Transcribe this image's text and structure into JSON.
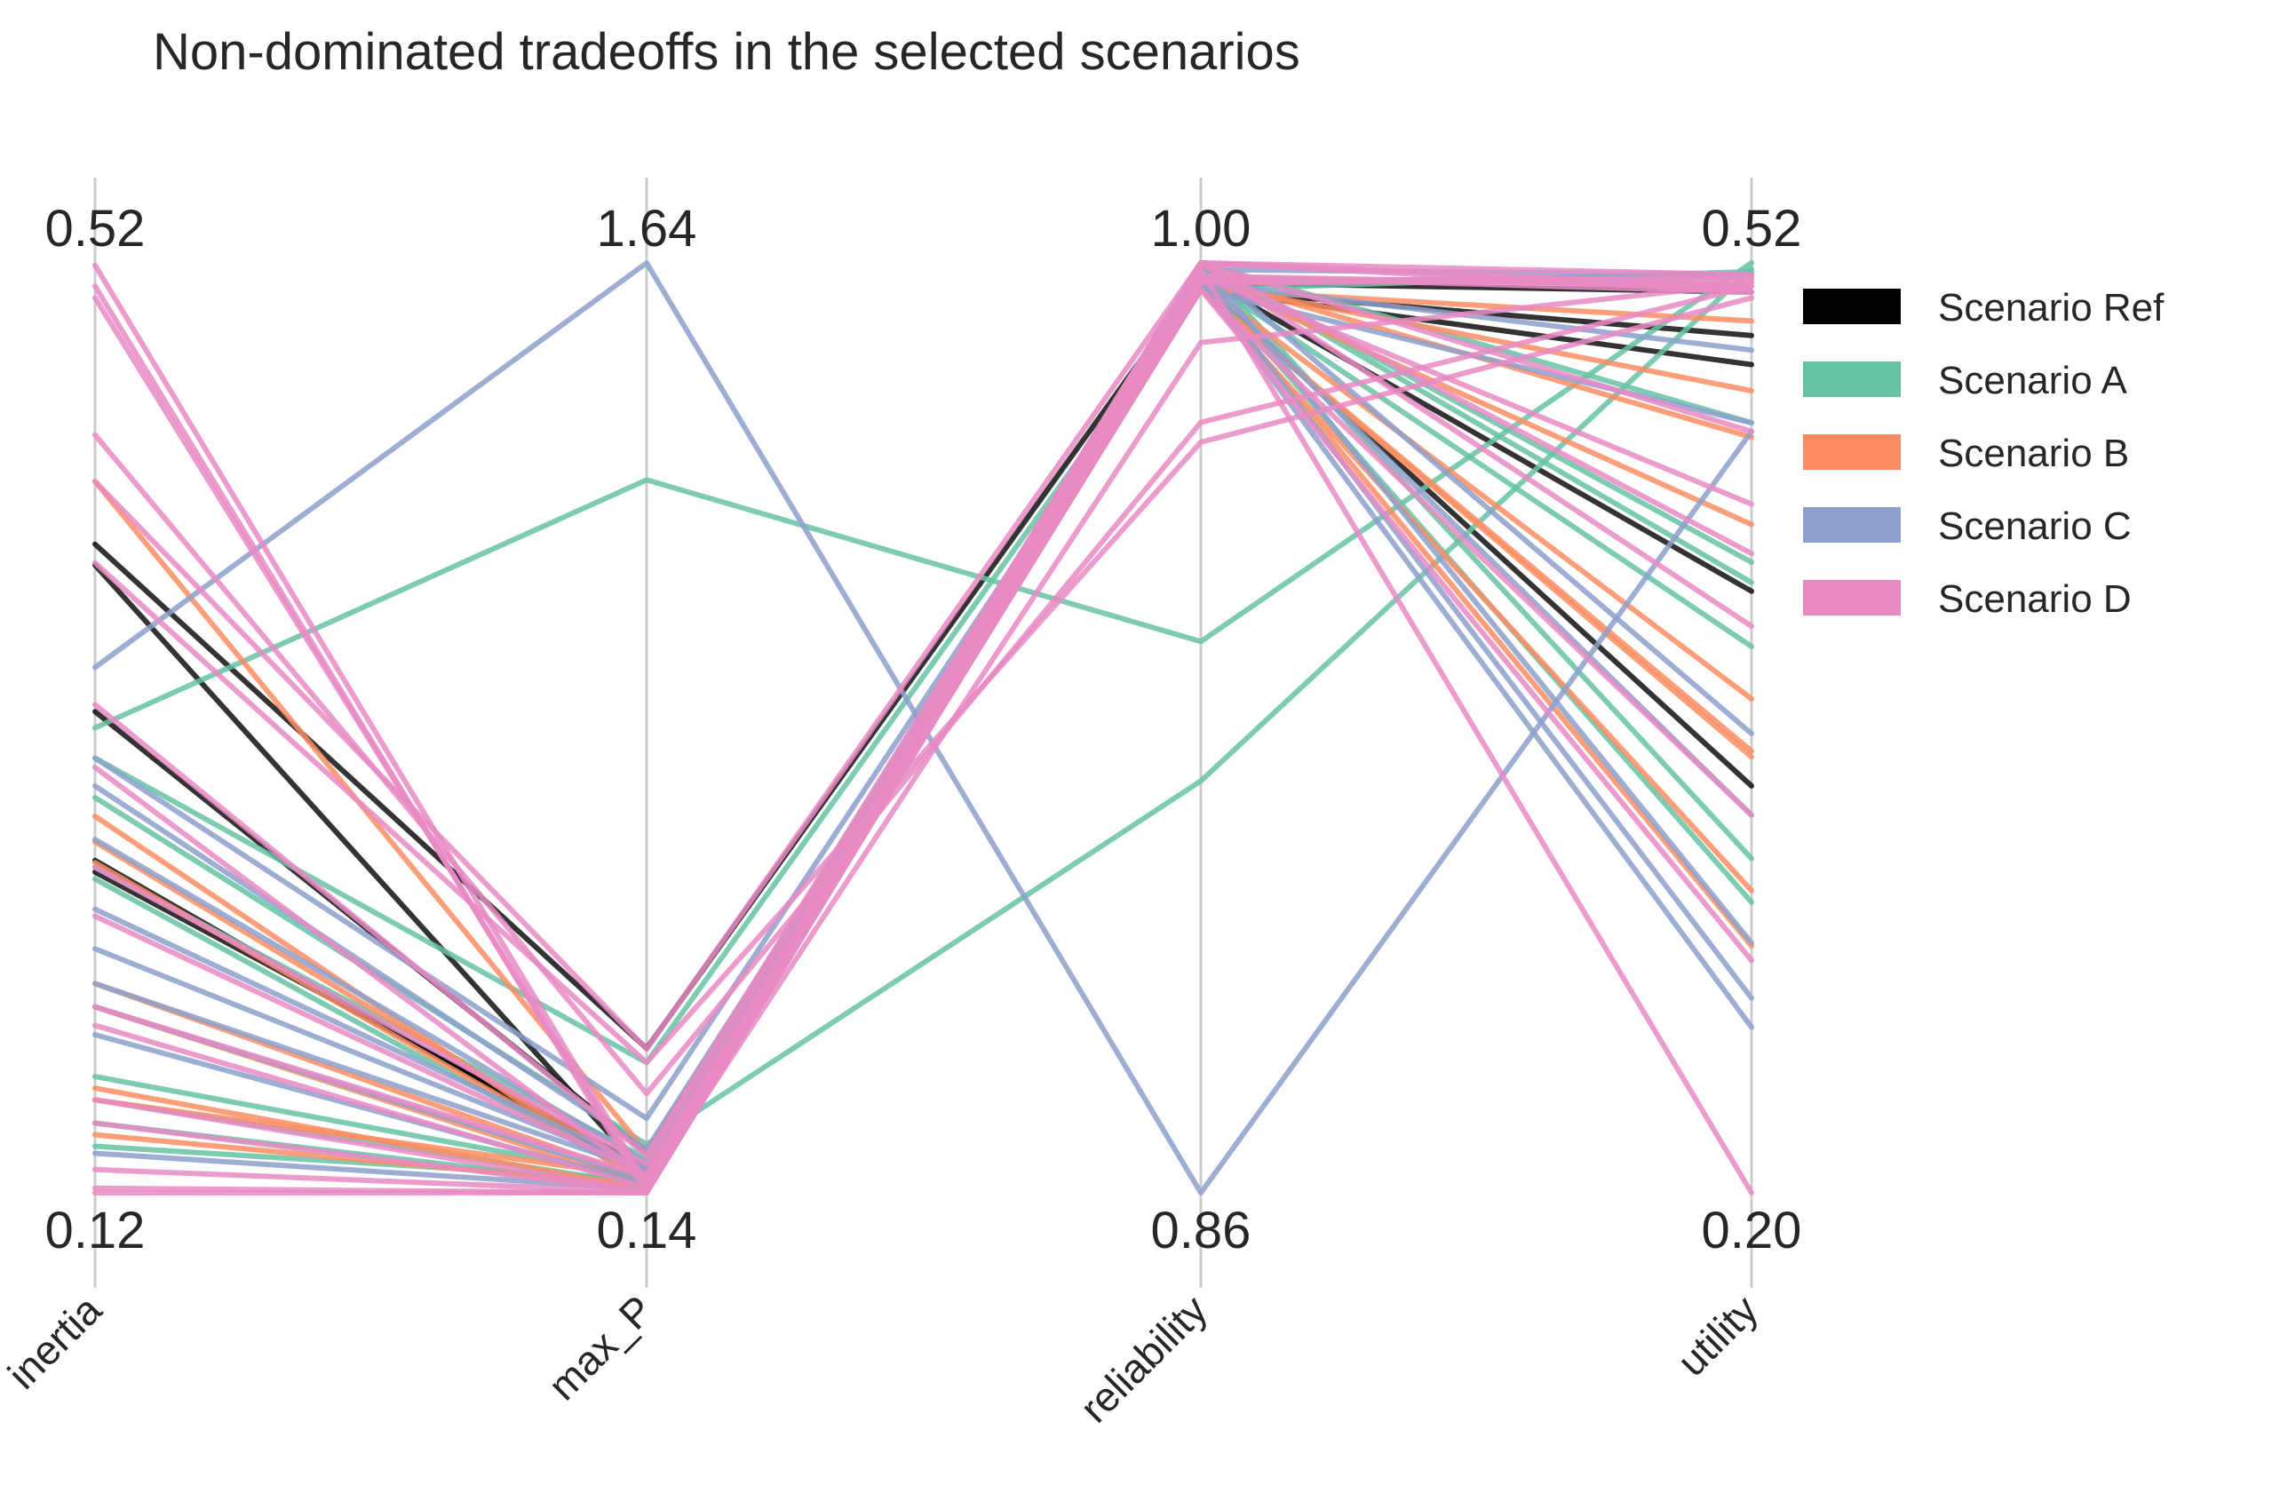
{
  "chart_data": {
    "type": "parallel_coordinates",
    "title": "Non-dominated tradeoffs in the selected scenarios",
    "axes": [
      {
        "name": "inertia",
        "max_label": "0.52",
        "min_label": "0.12",
        "range": [
          0.12,
          0.52
        ]
      },
      {
        "name": "max_P",
        "max_label": "1.64",
        "min_label": "0.14",
        "range": [
          0.14,
          1.64
        ]
      },
      {
        "name": "reliability",
        "max_label": "1.00",
        "min_label": "0.86",
        "range": [
          0.86,
          1.0
        ]
      },
      {
        "name": "utility",
        "max_label": "0.52",
        "min_label": "0.20",
        "range": [
          0.2,
          0.52
        ]
      }
    ],
    "grid": false,
    "legend_position": "right",
    "series": [
      {
        "name": "Scenario Ref",
        "color": "#000000",
        "lines": [
          [
            0.399,
            0.373,
            0.998,
            0.407
          ],
          [
            0.39,
            0.168,
            0.997,
            0.34
          ],
          [
            0.327,
            0.205,
            0.996,
            0.485
          ],
          [
            0.263,
            0.165,
            0.997,
            0.51
          ],
          [
            0.258,
            0.18,
            0.996,
            0.495
          ]
        ]
      },
      {
        "name": "Scenario A",
        "color": "#66c2a5",
        "lines": [
          [
            0.32,
            1.29,
            0.943,
            0.52
          ],
          [
            0.307,
            0.35,
            0.996,
            0.517
          ],
          [
            0.29,
            0.218,
            0.922,
            0.518
          ],
          [
            0.26,
            0.195,
            1.0,
            0.465
          ],
          [
            0.255,
            0.16,
            0.998,
            0.388
          ],
          [
            0.17,
            0.163,
            1.0,
            0.315
          ],
          [
            0.16,
            0.152,
            0.998,
            0.3
          ],
          [
            0.15,
            0.148,
            1.0,
            0.417
          ],
          [
            0.14,
            0.16,
            1.0,
            0.41
          ]
        ]
      },
      {
        "name": "Scenario B",
        "color": "#fc8d62",
        "lines": [
          [
            0.426,
            0.205,
            0.997,
            0.476
          ],
          [
            0.282,
            0.15,
            0.996,
            0.5
          ],
          [
            0.271,
            0.17,
            0.998,
            0.43
          ],
          [
            0.262,
            0.159,
            0.997,
            0.285
          ],
          [
            0.21,
            0.16,
            0.996,
            0.35
          ],
          [
            0.2,
            0.153,
            0.998,
            0.46
          ],
          [
            0.165,
            0.146,
            0.997,
            0.37
          ],
          [
            0.16,
            0.165,
            0.996,
            0.352
          ],
          [
            0.145,
            0.15,
            0.996,
            0.304
          ]
        ]
      },
      {
        "name": "Scenario C",
        "color": "#8da0cb",
        "lines": [
          [
            0.346,
            1.64,
            0.86,
            0.462
          ],
          [
            0.307,
            0.26,
            0.997,
            0.516
          ],
          [
            0.295,
            0.21,
            0.996,
            0.465
          ],
          [
            0.272,
            0.189,
            0.998,
            0.33
          ],
          [
            0.242,
            0.18,
            1.0,
            0.358
          ],
          [
            0.225,
            0.178,
            1.0,
            0.286
          ],
          [
            0.21,
            0.176,
            0.997,
            0.257
          ],
          [
            0.2,
            0.16,
            0.997,
            0.49
          ],
          [
            0.188,
            0.153,
            0.999,
            0.516
          ],
          [
            0.137,
            0.146,
            0.998,
            0.267
          ]
        ]
      },
      {
        "name": "Scenario D",
        "color": "#e78ac3",
        "lines": [
          [
            0.519,
            0.155,
            1.0,
            0.512
          ],
          [
            0.51,
            0.14,
            0.997,
            0.515
          ],
          [
            0.505,
            0.15,
            0.988,
            0.513
          ],
          [
            0.446,
            0.3,
            0.976,
            0.512
          ],
          [
            0.426,
            0.372,
            1.0,
            0.462
          ],
          [
            0.391,
            0.35,
            0.973,
            0.508
          ],
          [
            0.33,
            0.2,
            1.0,
            0.51
          ],
          [
            0.303,
            0.163,
            1.0,
            0.42
          ],
          [
            0.26,
            0.186,
            1.0,
            0.395
          ],
          [
            0.239,
            0.17,
            0.998,
            0.437
          ],
          [
            0.2,
            0.166,
            0.996,
            0.33
          ],
          [
            0.192,
            0.148,
            0.996,
            0.28
          ],
          [
            0.16,
            0.143,
            0.998,
            0.51
          ],
          [
            0.15,
            0.141,
            0.999,
            0.2
          ],
          [
            0.13,
            0.142,
            1.0,
            0.516
          ],
          [
            0.122,
            0.14,
            0.998,
            0.512
          ],
          [
            0.12,
            0.14,
            0.997,
            0.514
          ]
        ]
      }
    ]
  }
}
